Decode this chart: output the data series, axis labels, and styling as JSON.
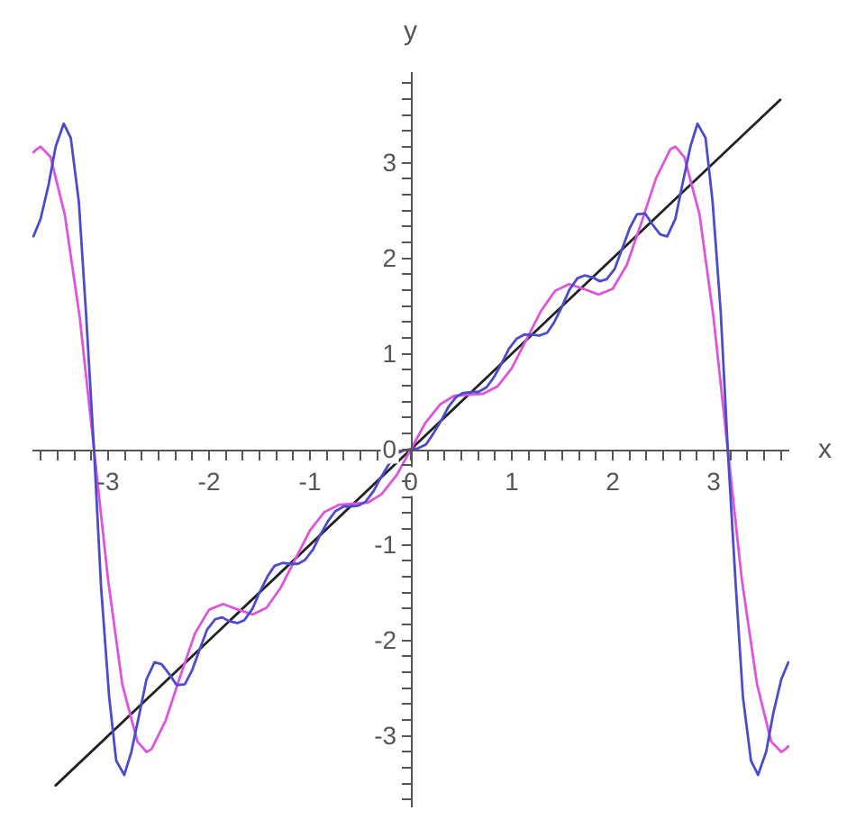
{
  "chart_data": {
    "type": "line",
    "xlabel": "x",
    "ylabel": "y",
    "xlim": [
      -3.75,
      3.75
    ],
    "ylim": [
      -3.75,
      3.95
    ],
    "xticks": [
      {
        "value": -3.667,
        "label": null
      },
      {
        "value": -3.5,
        "label": null
      },
      {
        "value": -3.333,
        "label": null
      },
      {
        "value": -3.167,
        "label": null
      },
      -3,
      {
        "value": -2.833,
        "label": null
      },
      {
        "value": -2.667,
        "label": null
      },
      {
        "value": -2.5,
        "label": null
      },
      {
        "value": -2.333,
        "label": null
      },
      {
        "value": -2.167,
        "label": null
      },
      -2,
      {
        "value": -1.833,
        "label": null
      },
      {
        "value": -1.667,
        "label": null
      },
      {
        "value": -1.5,
        "label": null
      },
      {
        "value": -1.333,
        "label": null
      },
      {
        "value": -1.167,
        "label": null
      },
      -1,
      {
        "value": -0.833,
        "label": null
      },
      {
        "value": -0.667,
        "label": null
      },
      {
        "value": -0.5,
        "label": null
      },
      {
        "value": -0.333,
        "label": null
      },
      {
        "value": -0.167,
        "label": null
      },
      0,
      {
        "value": 0.167,
        "label": null
      },
      {
        "value": 0.333,
        "label": null
      },
      {
        "value": 0.5,
        "label": null
      },
      {
        "value": 0.667,
        "label": null
      },
      {
        "value": 0.833,
        "label": null
      },
      1,
      {
        "value": 1.167,
        "label": null
      },
      {
        "value": 1.333,
        "label": null
      },
      {
        "value": 1.5,
        "label": null
      },
      {
        "value": 1.667,
        "label": null
      },
      {
        "value": 1.833,
        "label": null
      },
      2,
      {
        "value": 2.167,
        "label": null
      },
      {
        "value": 2.333,
        "label": null
      },
      {
        "value": 2.5,
        "label": null
      },
      {
        "value": 2.667,
        "label": null
      },
      {
        "value": 2.833,
        "label": null
      },
      3,
      {
        "value": 3.167,
        "label": null
      },
      {
        "value": 3.333,
        "label": null
      },
      {
        "value": 3.5,
        "label": null
      },
      {
        "value": 3.667,
        "label": null
      }
    ],
    "yticks": [
      {
        "value": -3.667,
        "label": null
      },
      {
        "value": -3.5,
        "label": null
      },
      {
        "value": -3.333,
        "label": null
      },
      {
        "value": -3.167,
        "label": null
      },
      -3,
      {
        "value": -2.833,
        "label": null
      },
      {
        "value": -2.667,
        "label": null
      },
      {
        "value": -2.5,
        "label": null
      },
      {
        "value": -2.333,
        "label": null
      },
      {
        "value": -2.167,
        "label": null
      },
      -2,
      {
        "value": -1.833,
        "label": null
      },
      {
        "value": -1.667,
        "label": null
      },
      {
        "value": -1.5,
        "label": null
      },
      {
        "value": -1.333,
        "label": null
      },
      {
        "value": -1.167,
        "label": null
      },
      -1,
      {
        "value": -0.833,
        "label": null
      },
      {
        "value": -0.667,
        "label": null
      },
      {
        "value": -0.5,
        "label": null
      },
      {
        "value": -0.333,
        "label": null
      },
      {
        "value": -0.167,
        "label": null
      },
      0,
      {
        "value": 0.167,
        "label": null
      },
      {
        "value": 0.333,
        "label": null
      },
      {
        "value": 0.5,
        "label": null
      },
      {
        "value": 0.667,
        "label": null
      },
      {
        "value": 0.833,
        "label": null
      },
      1,
      {
        "value": 1.167,
        "label": null
      },
      {
        "value": 1.333,
        "label": null
      },
      {
        "value": 1.5,
        "label": null
      },
      {
        "value": 1.667,
        "label": null
      },
      {
        "value": 1.833,
        "label": null
      },
      2,
      {
        "value": 2.167,
        "label": null
      },
      {
        "value": 2.333,
        "label": null
      },
      {
        "value": 2.5,
        "label": null
      },
      {
        "value": 2.667,
        "label": null
      },
      {
        "value": 2.833,
        "label": null
      },
      3,
      {
        "value": 3.167,
        "label": null
      },
      {
        "value": 3.333,
        "label": null
      },
      {
        "value": 3.5,
        "label": null
      },
      {
        "value": 3.667,
        "label": null
      },
      {
        "value": 3.833,
        "label": null
      }
    ],
    "series": [
      {
        "color": "#222222",
        "x": [
          -3.52,
          3.66
        ],
        "values": [
          -3.52,
          3.66
        ]
      },
      {
        "color": "#dd55dd",
        "x": [
          -3.74,
          -3.71,
          -3.67,
          -3.57,
          -3.43,
          -3.28,
          -3.14,
          -3.0,
          -2.86,
          -2.71,
          -2.62,
          -2.57,
          -2.43,
          -2.28,
          -2.14,
          -2.0,
          -1.86,
          -1.71,
          -1.57,
          -1.43,
          -1.29,
          -1.14,
          -1.0,
          -0.86,
          -0.71,
          -0.57,
          -0.43,
          -0.29,
          -0.14,
          0,
          0.14,
          0.29,
          0.43,
          0.57,
          0.71,
          0.86,
          1.0,
          1.14,
          1.29,
          1.43,
          1.57,
          1.71,
          1.86,
          2.0,
          2.14,
          2.28,
          2.43,
          2.57,
          2.62,
          2.71,
          2.86,
          3.0,
          3.14,
          3.28,
          3.43,
          3.57,
          3.67,
          3.71,
          3.74
        ],
        "values": [
          3.11,
          3.14,
          3.17,
          3.06,
          2.46,
          1.37,
          0,
          -1.37,
          -2.46,
          -3.06,
          -3.17,
          -3.14,
          -2.84,
          -2.36,
          -1.93,
          -1.68,
          -1.62,
          -1.68,
          -1.73,
          -1.66,
          -1.45,
          -1.14,
          -0.85,
          -0.66,
          -0.58,
          -0.57,
          -0.56,
          -0.47,
          -0.27,
          0,
          0.27,
          0.47,
          0.56,
          0.57,
          0.58,
          0.66,
          0.85,
          1.14,
          1.45,
          1.66,
          1.73,
          1.68,
          1.62,
          1.68,
          1.93,
          2.36,
          2.84,
          3.14,
          3.17,
          3.06,
          2.46,
          1.37,
          0,
          -1.37,
          -2.46,
          -3.06,
          -3.17,
          -3.14,
          -3.11
        ]
      },
      {
        "color": "#4b4bcc",
        "x": [
          -3.74,
          -3.67,
          -3.59,
          -3.52,
          -3.44,
          -3.37,
          -3.29,
          -3.22,
          -3.14,
          -3.07,
          -2.99,
          -2.92,
          -2.84,
          -2.77,
          -2.69,
          -2.62,
          -2.54,
          -2.47,
          -2.39,
          -2.32,
          -2.24,
          -2.17,
          -2.09,
          -2.02,
          -1.94,
          -1.87,
          -1.8,
          -1.72,
          -1.65,
          -1.57,
          -1.5,
          -1.42,
          -1.35,
          -1.27,
          -1.2,
          -1.12,
          -1.05,
          -0.97,
          -0.9,
          -0.82,
          -0.75,
          -0.67,
          -0.6,
          -0.52,
          -0.45,
          -0.37,
          -0.3,
          -0.22,
          -0.15,
          -0.07,
          0,
          0.07,
          0.15,
          0.22,
          0.3,
          0.37,
          0.45,
          0.52,
          0.6,
          0.67,
          0.75,
          0.82,
          0.9,
          0.97,
          1.05,
          1.12,
          1.2,
          1.27,
          1.35,
          1.42,
          1.5,
          1.57,
          1.65,
          1.72,
          1.8,
          1.87,
          1.94,
          2.02,
          2.09,
          2.17,
          2.24,
          2.32,
          2.39,
          2.47,
          2.54,
          2.62,
          2.69,
          2.77,
          2.84,
          2.92,
          2.99,
          3.07,
          3.14,
          3.22,
          3.29,
          3.37,
          3.44,
          3.52,
          3.59,
          3.67,
          3.74
        ],
        "values": [
          2.23,
          2.41,
          2.77,
          3.17,
          3.41,
          3.26,
          2.59,
          1.44,
          0,
          -1.44,
          -2.59,
          -3.26,
          -3.41,
          -3.17,
          -2.77,
          -2.41,
          -2.23,
          -2.25,
          -2.36,
          -2.47,
          -2.46,
          -2.32,
          -2.09,
          -1.89,
          -1.78,
          -1.76,
          -1.8,
          -1.82,
          -1.79,
          -1.67,
          -1.5,
          -1.33,
          -1.22,
          -1.19,
          -1.2,
          -1.2,
          -1.16,
          -1.05,
          -0.9,
          -0.75,
          -0.65,
          -0.6,
          -0.6,
          -0.59,
          -0.55,
          -0.44,
          -0.3,
          -0.16,
          -0.05,
          -0.01,
          0,
          0.01,
          0.05,
          0.16,
          0.3,
          0.44,
          0.55,
          0.59,
          0.6,
          0.6,
          0.65,
          0.75,
          0.9,
          1.05,
          1.16,
          1.2,
          1.2,
          1.19,
          1.22,
          1.33,
          1.5,
          1.67,
          1.79,
          1.82,
          1.8,
          1.76,
          1.78,
          1.89,
          2.09,
          2.32,
          2.46,
          2.47,
          2.36,
          2.25,
          2.23,
          2.41,
          2.77,
          3.17,
          3.41,
          3.26,
          2.59,
          1.44,
          0,
          -1.44,
          -2.59,
          -3.26,
          -3.41,
          -3.17,
          -2.77,
          -2.41,
          -2.23
        ]
      }
    ]
  }
}
